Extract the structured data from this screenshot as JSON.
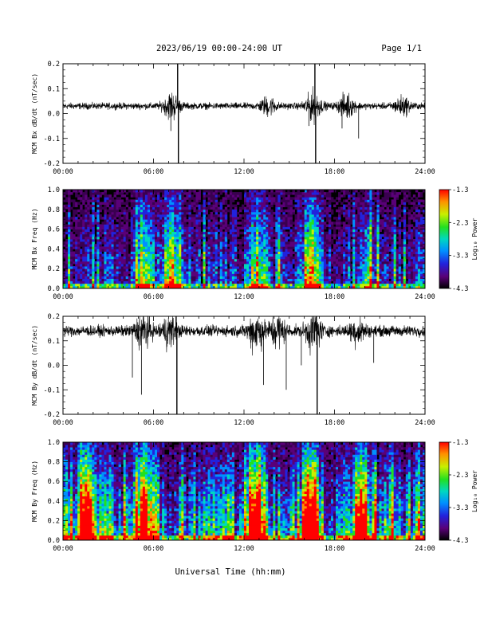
{
  "header": {
    "date_title": "2023/06/19  00:00-24:00 UT",
    "page_label": "Page 1/1"
  },
  "colors": {
    "trace": "#000000",
    "axis": "#000000",
    "background": "#ffffff",
    "spectrogram_background": "#000000"
  },
  "chart_data": [
    {
      "type": "line",
      "id": "bx-dbdt",
      "ylabel": "MCM Bx dB/dt (nT/sec)",
      "xlabel": "",
      "x_ticks": [
        "00:00",
        "06:00",
        "12:00",
        "18:00",
        "24:00"
      ],
      "x_range_hours": [
        0,
        24
      ],
      "ylim": [
        -0.2,
        0.2
      ],
      "y_ticks": [
        "-0.2",
        "-0.1",
        "0.0",
        "0.1",
        "0.2"
      ],
      "baseline": 0.03,
      "noise_amplitude": 0.012,
      "bursts": [
        {
          "hour": 7.2,
          "amplitude": 0.045
        },
        {
          "hour": 13.6,
          "amplitude": 0.03
        },
        {
          "hour": 16.6,
          "amplitude": 0.05
        },
        {
          "hour": 18.8,
          "amplitude": 0.04
        },
        {
          "hour": 22.5,
          "amplitude": 0.03
        }
      ],
      "spikes": [
        {
          "hour": 7.15,
          "value": -0.07
        },
        {
          "hour": 7.6,
          "value": 0.21
        },
        {
          "hour": 7.65,
          "value": -0.2
        },
        {
          "hour": 16.7,
          "value": 0.21
        },
        {
          "hour": 16.75,
          "value": -0.2
        },
        {
          "hour": 18.5,
          "value": -0.06
        },
        {
          "hour": 19.6,
          "value": -0.1
        },
        {
          "hour": 16.3,
          "value": -0.05
        }
      ]
    },
    {
      "type": "heatmap",
      "id": "bx-spectrogram",
      "ylabel": "MCM Bx Freq (Hz)",
      "x_ticks": [
        "00:00",
        "06:00",
        "12:00",
        "18:00",
        "24:00"
      ],
      "x_range_hours": [
        0,
        24
      ],
      "ylim": [
        0,
        1.0
      ],
      "y_ticks": [
        "0.0",
        "0.2",
        "0.4",
        "0.6",
        "0.8",
        "1.0"
      ],
      "colorbar": {
        "label": "Log₁₀ Power",
        "min": -4.3,
        "max": -1.3,
        "ticks": [
          "-1.3",
          "-2.3",
          "-3.3",
          "-4.3"
        ]
      },
      "activity_level": 0.35,
      "active_hours": [
        {
          "hour": 5.4,
          "strength": 0.45
        },
        {
          "hour": 7.2,
          "strength": 0.55
        },
        {
          "hour": 12.9,
          "strength": 0.5
        },
        {
          "hour": 16.5,
          "strength": 0.6
        },
        {
          "hour": 20.2,
          "strength": 0.3
        }
      ]
    },
    {
      "type": "line",
      "id": "by-dbdt",
      "ylabel": "MCM By dB/dt (nT/sec)",
      "xlabel": "",
      "x_ticks": [
        "00:00",
        "06:00",
        "12:00",
        "18:00",
        "24:00"
      ],
      "x_range_hours": [
        0,
        24
      ],
      "ylim": [
        -0.2,
        0.2
      ],
      "y_ticks": [
        "-0.2",
        "-0.1",
        "0.0",
        "0.1",
        "0.2"
      ],
      "baseline": 0.14,
      "noise_amplitude": 0.02,
      "bursts": [
        {
          "hour": 5.3,
          "amplitude": 0.06
        },
        {
          "hour": 7.0,
          "amplitude": 0.05
        },
        {
          "hour": 12.8,
          "amplitude": 0.07
        },
        {
          "hour": 14.2,
          "amplitude": 0.06
        },
        {
          "hour": 16.6,
          "amplitude": 0.07
        },
        {
          "hour": 19.5,
          "amplitude": 0.04
        }
      ],
      "spikes": [
        {
          "hour": 5.2,
          "value": -0.12
        },
        {
          "hour": 4.6,
          "value": -0.05
        },
        {
          "hour": 7.5,
          "value": 0.21
        },
        {
          "hour": 7.55,
          "value": -0.2
        },
        {
          "hour": 13.3,
          "value": -0.08
        },
        {
          "hour": 14.8,
          "value": -0.1
        },
        {
          "hour": 16.8,
          "value": 0.21
        },
        {
          "hour": 16.85,
          "value": -0.2
        },
        {
          "hour": 15.8,
          "value": 0.0
        },
        {
          "hour": 20.6,
          "value": 0.01
        }
      ]
    },
    {
      "type": "heatmap",
      "id": "by-spectrogram",
      "ylabel": "MCM By Freq (Hz)",
      "xlabel": "Universal Time (hh:mm)",
      "x_ticks": [
        "00:00",
        "06:00",
        "12:00",
        "18:00",
        "24:00"
      ],
      "x_range_hours": [
        0,
        24
      ],
      "ylim": [
        0,
        1.0
      ],
      "y_ticks": [
        "0.0",
        "0.2",
        "0.4",
        "0.6",
        "0.8",
        "1.0"
      ],
      "colorbar": {
        "label": "Log₁₀ Power",
        "min": -4.3,
        "max": -1.3,
        "ticks": [
          "-1.3",
          "-2.3",
          "-3.3",
          "-4.3"
        ]
      },
      "activity_level": 0.6,
      "active_hours": [
        {
          "hour": 1.5,
          "strength": 0.6
        },
        {
          "hour": 5.3,
          "strength": 0.7
        },
        {
          "hour": 12.8,
          "strength": 0.85
        },
        {
          "hour": 16.4,
          "strength": 0.75
        },
        {
          "hour": 19.8,
          "strength": 0.6
        }
      ]
    }
  ]
}
